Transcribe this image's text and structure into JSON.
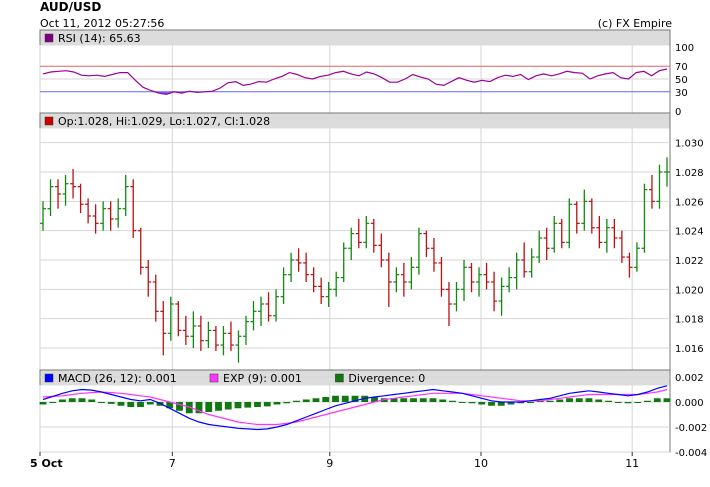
{
  "header": {
    "title": "AUD/USD",
    "timestamp": "Oct 11, 2012 05:27:56",
    "credit": "(c) FX Empire"
  },
  "colors": {
    "panel_header_bg": "#dcdcdc",
    "grid": "#d6d6d6",
    "rsi_line": "#990099",
    "rsi_fill": "#6666ff",
    "rsi_upper": "#e06666",
    "rsi_lower": "#6666ff",
    "bar_up": "#118811",
    "bar_down": "#bb1111",
    "macd": "#0000ff",
    "signal": "#ff33ff",
    "divergence": "#117711"
  },
  "chart_data": [
    {
      "type": "line",
      "panel": "rsi",
      "legend": "RSI (14): 65.63",
      "legend_swatch": "#800080",
      "ylim": [
        0,
        100
      ],
      "y_ticks": [
        "100",
        "70",
        "50",
        "30",
        "0"
      ],
      "y_tick_values": [
        100,
        70,
        50,
        30,
        0
      ],
      "reference_lines": [
        {
          "label": "70",
          "value": 70
        },
        {
          "label": "30",
          "value": 30
        }
      ],
      "grid": true,
      "values": [
        58,
        61,
        62,
        63,
        61,
        56,
        55,
        56,
        54,
        57,
        60,
        60,
        48,
        37,
        32,
        28,
        26,
        30,
        28,
        31,
        29,
        30,
        31,
        36,
        44,
        46,
        40,
        42,
        46,
        45,
        50,
        54,
        60,
        57,
        52,
        50,
        54,
        56,
        60,
        62,
        58,
        55,
        61,
        58,
        52,
        45,
        45,
        50,
        57,
        53,
        50,
        42,
        40,
        46,
        52,
        48,
        45,
        48,
        46,
        52,
        56,
        54,
        57,
        49,
        55,
        58,
        55,
        58,
        62,
        60,
        59,
        50,
        55,
        58,
        60,
        52,
        50,
        60,
        62,
        55,
        63,
        65.63
      ]
    },
    {
      "type": "candlestick",
      "panel": "price",
      "legend": "Op:1.028, Hi:1.029, Lo:1.027, Cl:1.028",
      "legend_swatch": "#cc0000",
      "ylim": [
        1.0145,
        1.031
      ],
      "y_ticks": [
        "1.030",
        "1.028",
        "1.026",
        "1.024",
        "1.022",
        "1.020",
        "1.018",
        "1.016"
      ],
      "y_tick_values": [
        1.03,
        1.028,
        1.026,
        1.024,
        1.022,
        1.02,
        1.018,
        1.016
      ],
      "grid": true,
      "ohlc": [
        [
          1.0245,
          1.026,
          1.024,
          1.0255
        ],
        [
          1.0255,
          1.0275,
          1.025,
          1.027
        ],
        [
          1.027,
          1.0275,
          1.0255,
          1.0265
        ],
        [
          1.0265,
          1.0278,
          1.0257,
          1.0272
        ],
        [
          1.0272,
          1.0282,
          1.0262,
          1.027
        ],
        [
          1.027,
          1.0272,
          1.0252,
          1.0258
        ],
        [
          1.0258,
          1.0262,
          1.0245,
          1.025
        ],
        [
          1.025,
          1.0258,
          1.0238,
          1.0245
        ],
        [
          1.0245,
          1.026,
          1.024,
          1.0255
        ],
        [
          1.0255,
          1.026,
          1.024,
          1.0248
        ],
        [
          1.0248,
          1.0262,
          1.0242,
          1.0255
        ],
        [
          1.0255,
          1.0278,
          1.025,
          1.027
        ],
        [
          1.027,
          1.0275,
          1.0235,
          1.024
        ],
        [
          1.024,
          1.0242,
          1.021,
          1.0215
        ],
        [
          1.0215,
          1.022,
          1.0195,
          1.0205
        ],
        [
          1.0205,
          1.021,
          1.0178,
          1.0185
        ],
        [
          1.0185,
          1.0192,
          1.0155,
          1.017
        ],
        [
          1.017,
          1.0195,
          1.0165,
          1.019
        ],
        [
          1.019,
          1.0192,
          1.0168,
          1.0172
        ],
        [
          1.0172,
          1.0182,
          1.0162,
          1.0168
        ],
        [
          1.0168,
          1.0185,
          1.016,
          1.0175
        ],
        [
          1.0175,
          1.0182,
          1.0158,
          1.0165
        ],
        [
          1.0165,
          1.0178,
          1.016,
          1.0172
        ],
        [
          1.0172,
          1.0175,
          1.0158,
          1.0162
        ],
        [
          1.0162,
          1.0175,
          1.0155,
          1.017
        ],
        [
          1.017,
          1.0178,
          1.0158,
          1.0162
        ],
        [
          1.0162,
          1.0172,
          1.015,
          1.0168
        ],
        [
          1.0168,
          1.0182,
          1.0162,
          1.0178
        ],
        [
          1.0178,
          1.0192,
          1.0172,
          1.0185
        ],
        [
          1.0185,
          1.0195,
          1.0175,
          1.019
        ],
        [
          1.019,
          1.0198,
          1.0178,
          1.0182
        ],
        [
          1.0182,
          1.02,
          1.0178,
          1.0195
        ],
        [
          1.0195,
          1.0215,
          1.019,
          1.021
        ],
        [
          1.021,
          1.0225,
          1.0205,
          1.022
        ],
        [
          1.022,
          1.0228,
          1.0212,
          1.0218
        ],
        [
          1.0218,
          1.0225,
          1.0205,
          1.021
        ],
        [
          1.021,
          1.0215,
          1.0198,
          1.0202
        ],
        [
          1.0202,
          1.0208,
          1.019,
          1.0195
        ],
        [
          1.0195,
          1.0205,
          1.0188,
          1.02
        ],
        [
          1.02,
          1.0212,
          1.0195,
          1.0208
        ],
        [
          1.0208,
          1.0232,
          1.0205,
          1.0228
        ],
        [
          1.0228,
          1.0242,
          1.022,
          1.0238
        ],
        [
          1.0238,
          1.0248,
          1.0228,
          1.0232
        ],
        [
          1.0232,
          1.025,
          1.0228,
          1.0245
        ],
        [
          1.0245,
          1.0248,
          1.0225,
          1.023
        ],
        [
          1.023,
          1.0238,
          1.0215,
          1.022
        ],
        [
          1.022,
          1.0225,
          1.0188,
          1.0205
        ],
        [
          1.0205,
          1.0215,
          1.0198,
          1.021
        ],
        [
          1.021,
          1.0218,
          1.0195,
          1.0205
        ],
        [
          1.0205,
          1.0222,
          1.02,
          1.0215
        ],
        [
          1.0215,
          1.0242,
          1.021,
          1.0238
        ],
        [
          1.0238,
          1.024,
          1.0222,
          1.0228
        ],
        [
          1.0228,
          1.0235,
          1.0212,
          1.0218
        ],
        [
          1.0218,
          1.0222,
          1.0195,
          1.02
        ],
        [
          1.02,
          1.0205,
          1.0175,
          1.019
        ],
        [
          1.019,
          1.0205,
          1.0185,
          1.02
        ],
        [
          1.02,
          1.022,
          1.0192,
          1.0215
        ],
        [
          1.0215,
          1.0218,
          1.0198,
          1.0205
        ],
        [
          1.0205,
          1.0215,
          1.0195,
          1.021
        ],
        [
          1.021,
          1.0218,
          1.02,
          1.0205
        ],
        [
          1.0205,
          1.0212,
          1.0185,
          1.0192
        ],
        [
          1.0192,
          1.0208,
          1.0182,
          1.0202
        ],
        [
          1.0202,
          1.0215,
          1.0198,
          1.0208
        ],
        [
          1.0208,
          1.0225,
          1.02,
          1.022
        ],
        [
          1.022,
          1.0232,
          1.0208,
          1.0212
        ],
        [
          1.0212,
          1.0228,
          1.0208,
          1.0222
        ],
        [
          1.0222,
          1.024,
          1.0218,
          1.0235
        ],
        [
          1.0235,
          1.0242,
          1.022,
          1.0228
        ],
        [
          1.0228,
          1.025,
          1.0225,
          1.0245
        ],
        [
          1.0245,
          1.0248,
          1.0228,
          1.0232
        ],
        [
          1.0232,
          1.0262,
          1.0228,
          1.0258
        ],
        [
          1.0258,
          1.026,
          1.0238,
          1.0245
        ],
        [
          1.0245,
          1.0268,
          1.024,
          1.026
        ],
        [
          1.026,
          1.0262,
          1.0238,
          1.0242
        ],
        [
          1.0242,
          1.025,
          1.0228,
          1.0232
        ],
        [
          1.0232,
          1.0248,
          1.0225,
          1.0242
        ],
        [
          1.0242,
          1.0248,
          1.0228,
          1.0235
        ],
        [
          1.0235,
          1.024,
          1.0218,
          1.0222
        ],
        [
          1.0222,
          1.0225,
          1.0208,
          1.0215
        ],
        [
          1.0215,
          1.0232,
          1.0212,
          1.0228
        ],
        [
          1.0228,
          1.0272,
          1.0225,
          1.0268
        ],
        [
          1.0268,
          1.0278,
          1.0255,
          1.026
        ],
        [
          1.026,
          1.0285,
          1.0255,
          1.028
        ],
        [
          1.028,
          1.029,
          1.027,
          1.028
        ]
      ]
    },
    {
      "type": "line",
      "panel": "macd",
      "legend": [
        {
          "label": "MACD (26, 12): 0.001",
          "color": "#0000ff"
        },
        {
          "label": "EXP (9): 0.001",
          "color": "#ff33ff"
        },
        {
          "label": "Divergence: 0",
          "color": "#117711"
        }
      ],
      "ylim": [
        -0.004,
        0.002
      ],
      "y_ticks": [
        "0.002",
        "0.000",
        "-0.002",
        "-0.004"
      ],
      "y_tick_values": [
        0.002,
        0,
        -0.002,
        -0.004
      ],
      "x_labels": [
        "5 Oct",
        "7",
        "9",
        "10",
        "11"
      ],
      "x_label_positions": [
        0.0,
        0.21,
        0.46,
        0.7,
        0.94
      ],
      "grid": true,
      "series": [
        {
          "name": "MACD",
          "values": [
            0.0002,
            0.00045,
            0.0007,
            0.0009,
            0.001,
            0.00095,
            0.0008,
            0.0006,
            0.0004,
            0.0002,
            0.0001,
            0.0002,
            -0.0001,
            -0.0005,
            -0.0009,
            -0.0013,
            -0.0016,
            -0.0018,
            -0.0019,
            -0.002,
            -0.0021,
            -0.00215,
            -0.0022,
            -0.00215,
            -0.002,
            -0.0018,
            -0.0015,
            -0.0012,
            -0.0009,
            -0.0006,
            -0.0003,
            -0.0001,
            0.0001,
            0.0003,
            0.0004,
            0.0005,
            0.0006,
            0.0007,
            0.0008,
            0.0009,
            0.001,
            0.0009,
            0.0008,
            0.0007,
            0.0005,
            0.0003,
            0.0001,
            0,
            0,
            0,
            0.0001,
            0.0002,
            0.0003,
            0.0005,
            0.0007,
            0.0008,
            0.0009,
            0.0008,
            0.0007,
            0.0006,
            0.0005,
            0.0006,
            0.0008,
            0.0011,
            0.0013
          ]
        },
        {
          "name": "EXP",
          "values": [
            0.0004,
            0.00045,
            0.0005,
            0.0006,
            0.0007,
            0.00075,
            0.0008,
            0.00075,
            0.0007,
            0.0006,
            0.0005,
            0.0004,
            0.0002,
            0,
            -0.0002,
            -0.0004,
            -0.0007,
            -0.001,
            -0.0012,
            -0.0014,
            -0.0016,
            -0.0017,
            -0.0018,
            -0.0018,
            -0.0018,
            -0.0017,
            -0.0016,
            -0.0014,
            -0.0012,
            -0.001,
            -0.0008,
            -0.0006,
            -0.0004,
            -0.0002,
            0,
            0.0002,
            0.0003,
            0.0004,
            0.0005,
            0.0006,
            0.0007,
            0.0007,
            0.0007,
            0.0007,
            0.0006,
            0.0005,
            0.0004,
            0.0003,
            0.0002,
            0.0001,
            0.0001,
            0.0001,
            0.0002,
            0.0003,
            0.0004,
            0.0005,
            0.0006,
            0.0006,
            0.0006,
            0.0006,
            0.0006,
            0.0006,
            0.0007,
            0.0008,
            0.001
          ]
        },
        {
          "name": "Divergence",
          "values": [
            -0.0002,
            0,
            0.0002,
            0.0003,
            0.0003,
            0.0002,
            0,
            -0.00015,
            -0.0003,
            -0.0004,
            -0.0004,
            -0.0002,
            -0.0003,
            -0.0005,
            -0.0007,
            -0.0009,
            -0.0009,
            -0.0008,
            -0.0007,
            -0.0006,
            -0.0005,
            -0.00045,
            -0.0004,
            -0.00035,
            -0.0002,
            -0.0001,
            0.0001,
            0.0002,
            0.0003,
            0.0004,
            0.0005,
            0.0005,
            0.0005,
            0.0005,
            0.0004,
            0.0003,
            0.0003,
            0.0003,
            0.0003,
            0.0003,
            0.0003,
            0.0002,
            0.0001,
            0,
            -0.0001,
            -0.0002,
            -0.0003,
            -0.0003,
            -0.0002,
            -0.0001,
            0,
            0.0001,
            0.0001,
            0.0002,
            0.0003,
            0.0003,
            0.0003,
            0.0002,
            0.0001,
            0,
            -0.0001,
            0,
            0.0001,
            0.0003,
            0.0003
          ]
        }
      ]
    }
  ]
}
